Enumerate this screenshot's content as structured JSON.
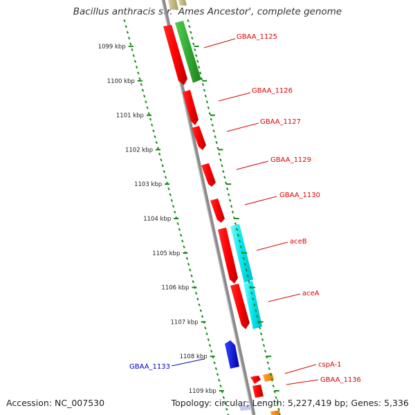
{
  "title": "Bacillus anthracis str. 'Ames Ancestor', complete genome",
  "footer": {
    "accession": "Accession: NC_007530",
    "summary": "Topology: circular; Length: 5,227,419 bp; Genes: 5,336"
  },
  "kbp_labels": [
    "1099 kbp",
    "1100 kbp",
    "1101 kbp",
    "1102 kbp",
    "1103 kbp",
    "1104 kbp",
    "1105 kbp",
    "1106 kbp",
    "1107 kbp",
    "1108 kbp",
    "1109 kbp"
  ],
  "genes": [
    {
      "name": "GBAA_1125",
      "color": "#dd0000"
    },
    {
      "name": "GBAA_1126",
      "color": "#dd0000"
    },
    {
      "name": "GBAA_1127",
      "color": "#dd0000"
    },
    {
      "name": "GBAA_1129",
      "color": "#dd0000"
    },
    {
      "name": "GBAA_1130",
      "color": "#dd0000"
    },
    {
      "name": "aceB",
      "color": "#dd0000"
    },
    {
      "name": "aceA",
      "color": "#dd0000"
    },
    {
      "name": "GBAA_1133",
      "color": "#0000bb"
    },
    {
      "name": "cspA-1",
      "color": "#dd0000"
    },
    {
      "name": "GBAA_1136",
      "color": "#dd0000"
    }
  ],
  "colors": {
    "cds_forward": "#ff0000",
    "cds_reverse": "#0000ff",
    "rna": "#33bb33",
    "cyan": "#00e5ee",
    "orange": "#ff8c00",
    "tick_green": "#118811",
    "backbone": "#888888"
  }
}
